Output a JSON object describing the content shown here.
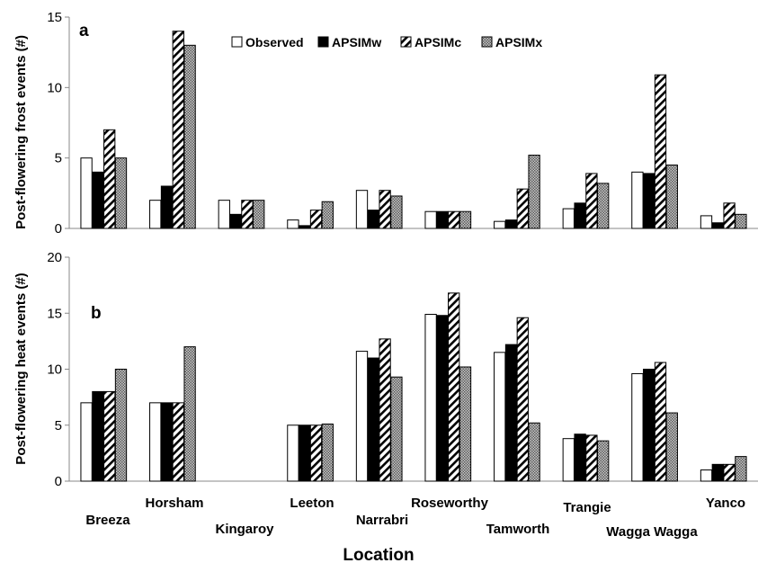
{
  "chart_data": [
    {
      "type": "bar",
      "panel_label": "a",
      "ylabel": "Post-flowering frost events (#)",
      "ylim": [
        0,
        15
      ],
      "yticks": [
        0,
        5,
        10,
        15
      ],
      "categories": [
        "Breeza",
        "Horsham",
        "Kingaroy",
        "Leeton",
        "Narrabri",
        "Roseworthy",
        "Tamworth",
        "Trangie",
        "Wagga Wagga",
        "Yanco"
      ],
      "series": [
        {
          "name": "Observed",
          "values": [
            5,
            2,
            2,
            0.6,
            2.7,
            1.2,
            0.5,
            1.4,
            4,
            0.9
          ]
        },
        {
          "name": "APSIMw",
          "values": [
            4,
            3,
            1,
            0.2,
            1.3,
            1.2,
            0.6,
            1.8,
            3.9,
            0.4
          ]
        },
        {
          "name": "APSIMc",
          "values": [
            7,
            14,
            2,
            1.3,
            2.7,
            1.2,
            2.8,
            3.9,
            10.9,
            1.8
          ]
        },
        {
          "name": "APSIMx",
          "values": [
            5,
            13,
            2,
            1.9,
            2.3,
            1.2,
            5.2,
            3.2,
            4.5,
            1
          ]
        }
      ],
      "legend": "top-center",
      "grid": false
    },
    {
      "type": "bar",
      "panel_label": "b",
      "ylabel": "Post-flowering heat events (#)",
      "ylim": [
        0,
        20
      ],
      "yticks": [
        0,
        5,
        10,
        15,
        20
      ],
      "categories": [
        "Breeza",
        "Horsham",
        "Kingaroy",
        "Leeton",
        "Narrabri",
        "Roseworthy",
        "Tamworth",
        "Trangie",
        "Wagga Wagga",
        "Yanco"
      ],
      "series": [
        {
          "name": "Observed",
          "values": [
            7,
            7,
            0,
            5,
            11.6,
            14.9,
            11.5,
            3.8,
            9.6,
            1
          ]
        },
        {
          "name": "APSIMw",
          "values": [
            8,
            7,
            0,
            5,
            11,
            14.8,
            12.2,
            4.2,
            10,
            1.5
          ]
        },
        {
          "name": "APSIMc",
          "values": [
            8,
            7,
            0,
            5,
            12.7,
            16.8,
            14.6,
            4.1,
            10.6,
            1.5
          ]
        },
        {
          "name": "APSIMx",
          "values": [
            10,
            12,
            0,
            5.1,
            9.3,
            10.2,
            5.2,
            3.6,
            6.1,
            2.2
          ]
        }
      ],
      "grid": false
    }
  ],
  "xlabel": "Location",
  "colors": {
    "Observed": "#ffffff",
    "APSIMw": "#000000",
    "APSIMc": "hatch-diagonal",
    "APSIMx": "hatch-dotted-gray",
    "axis": "#888888",
    "outline": "#000000"
  }
}
